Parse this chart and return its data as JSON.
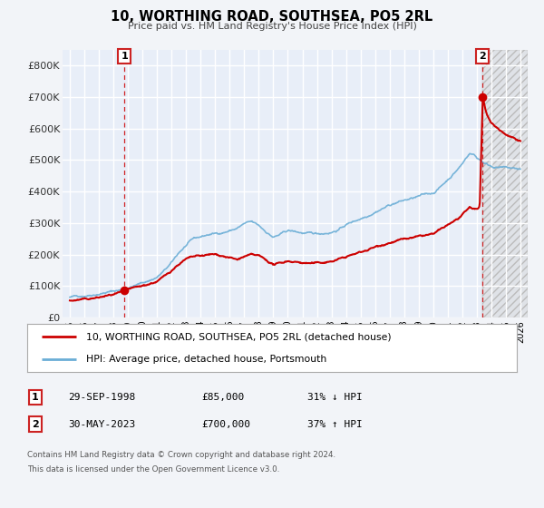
{
  "title": "10, WORTHING ROAD, SOUTHSEA, PO5 2RL",
  "subtitle": "Price paid vs. HM Land Registry's House Price Index (HPI)",
  "legend_label1": "10, WORTHING ROAD, SOUTHSEA, PO5 2RL (detached house)",
  "legend_label2": "HPI: Average price, detached house, Portsmouth",
  "marker1_date": 1998.75,
  "marker1_price": 85000,
  "marker2_date": 2023.41,
  "marker2_price": 700000,
  "table_row1": [
    "1",
    "29-SEP-1998",
    "£85,000",
    "31% ↓ HPI"
  ],
  "table_row2": [
    "2",
    "30-MAY-2023",
    "£700,000",
    "37% ↑ HPI"
  ],
  "footnote1": "Contains HM Land Registry data © Crown copyright and database right 2024.",
  "footnote2": "This data is licensed under the Open Government Licence v3.0.",
  "xlim": [
    1994.5,
    2026.5
  ],
  "ylim": [
    0,
    850000
  ],
  "yticks": [
    0,
    100000,
    200000,
    300000,
    400000,
    500000,
    600000,
    700000,
    800000
  ],
  "ytick_labels": [
    "£0",
    "£100K",
    "£200K",
    "£300K",
    "£400K",
    "£500K",
    "£600K",
    "£700K",
    "£800K"
  ],
  "hpi_color": "#6baed6",
  "hpi_color_light": "#aec6e8",
  "price_color": "#cc0000",
  "bg_color": "#f2f4f8",
  "plot_bg": "#e8eef8",
  "grid_color": "#ffffff",
  "marker_box_color": "#cc2222",
  "hatch_color": "#cccccc",
  "last_sale_year": 2023.41,
  "chart_end_year": 2026.0
}
